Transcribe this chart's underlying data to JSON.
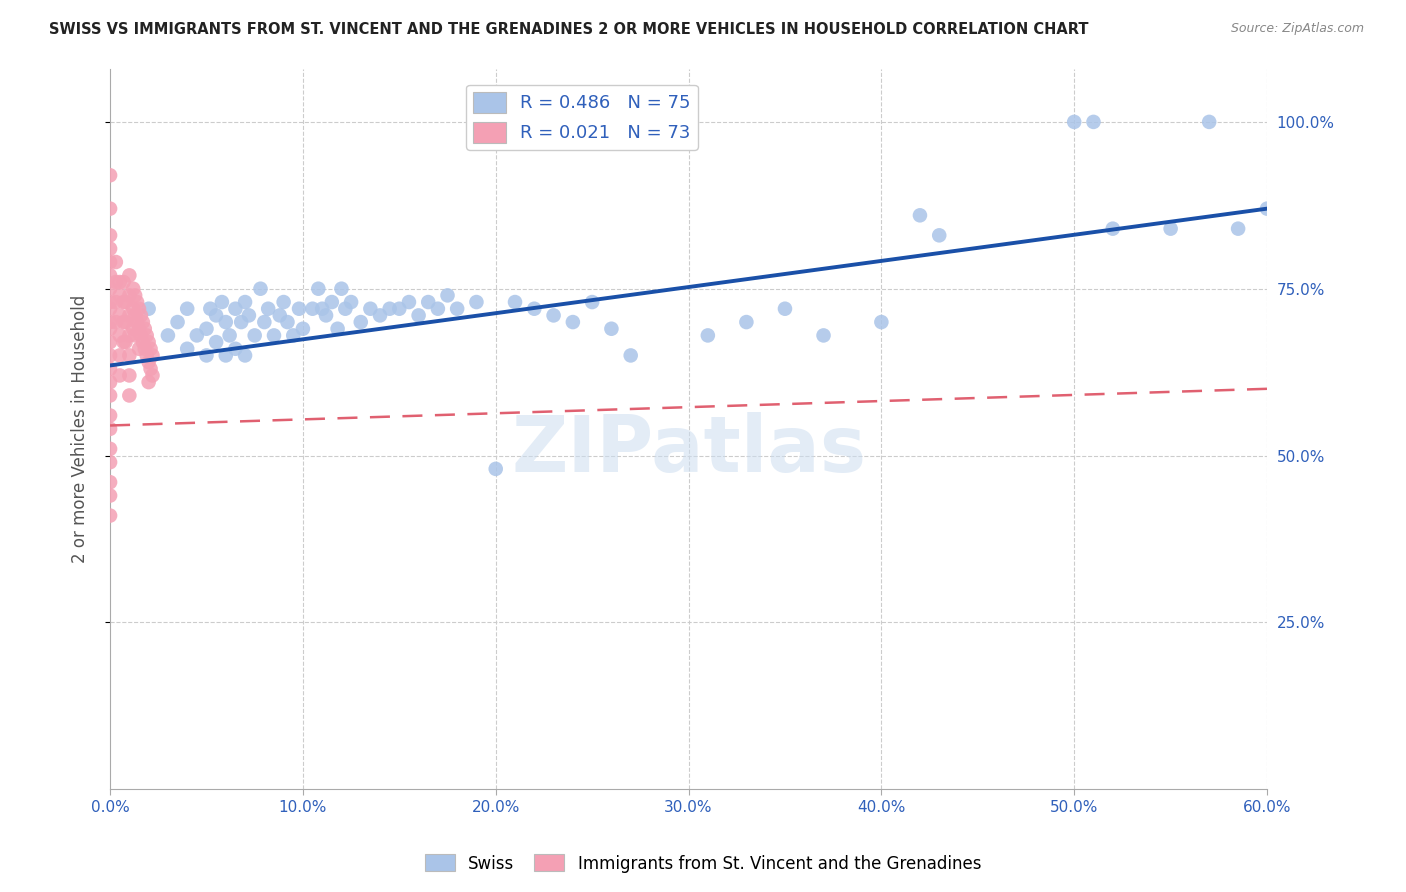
{
  "title": "SWISS VS IMMIGRANTS FROM ST. VINCENT AND THE GRENADINES 2 OR MORE VEHICLES IN HOUSEHOLD CORRELATION CHART",
  "source": "Source: ZipAtlas.com",
  "ylabel": "2 or more Vehicles in Household",
  "xlim": [
    0.0,
    0.6
  ],
  "ylim": [
    0.0,
    1.05
  ],
  "xtick_labels": [
    "0.0%",
    "10.0%",
    "20.0%",
    "30.0%",
    "40.0%",
    "50.0%",
    "60.0%"
  ],
  "xtick_values": [
    0.0,
    0.1,
    0.2,
    0.3,
    0.4,
    0.5,
    0.6
  ],
  "ytick_labels": [
    "25.0%",
    "50.0%",
    "75.0%",
    "100.0%"
  ],
  "ytick_values": [
    0.25,
    0.5,
    0.75,
    1.0
  ],
  "swiss_R": 0.486,
  "swiss_N": 75,
  "svg_R": 0.021,
  "svg_N": 73,
  "swiss_color": "#aac4e8",
  "svg_color": "#f4a0b4",
  "swiss_line_color": "#1a50a8",
  "svg_line_color": "#e06070",
  "watermark": "ZIPatlas",
  "legend_swiss_label": "Swiss",
  "legend_svg_label": "Immigrants from St. Vincent and the Grenadines",
  "swiss_x": [
    0.02,
    0.03,
    0.035,
    0.04,
    0.04,
    0.045,
    0.05,
    0.05,
    0.052,
    0.055,
    0.055,
    0.058,
    0.06,
    0.06,
    0.062,
    0.065,
    0.065,
    0.068,
    0.07,
    0.07,
    0.072,
    0.075,
    0.078,
    0.08,
    0.082,
    0.085,
    0.088,
    0.09,
    0.092,
    0.095,
    0.098,
    0.1,
    0.105,
    0.108,
    0.11,
    0.112,
    0.115,
    0.118,
    0.12,
    0.122,
    0.125,
    0.13,
    0.135,
    0.14,
    0.145,
    0.15,
    0.155,
    0.16,
    0.165,
    0.17,
    0.175,
    0.18,
    0.19,
    0.2,
    0.21,
    0.22,
    0.23,
    0.24,
    0.25,
    0.26,
    0.27,
    0.31,
    0.33,
    0.35,
    0.37,
    0.4,
    0.42,
    0.43,
    0.5,
    0.51,
    0.52,
    0.55,
    0.57,
    0.585,
    0.6
  ],
  "swiss_y": [
    0.72,
    0.68,
    0.7,
    0.66,
    0.72,
    0.68,
    0.65,
    0.69,
    0.72,
    0.67,
    0.71,
    0.73,
    0.65,
    0.7,
    0.68,
    0.72,
    0.66,
    0.7,
    0.65,
    0.73,
    0.71,
    0.68,
    0.75,
    0.7,
    0.72,
    0.68,
    0.71,
    0.73,
    0.7,
    0.68,
    0.72,
    0.69,
    0.72,
    0.75,
    0.72,
    0.71,
    0.73,
    0.69,
    0.75,
    0.72,
    0.73,
    0.7,
    0.72,
    0.71,
    0.72,
    0.72,
    0.73,
    0.71,
    0.73,
    0.72,
    0.74,
    0.72,
    0.73,
    0.48,
    0.73,
    0.72,
    0.71,
    0.7,
    0.73,
    0.69,
    0.65,
    0.68,
    0.7,
    0.72,
    0.68,
    0.7,
    0.86,
    0.83,
    1.0,
    1.0,
    0.84,
    0.84,
    1.0,
    0.84,
    0.87
  ],
  "svg_x": [
    0.0,
    0.0,
    0.0,
    0.0,
    0.0,
    0.0,
    0.0,
    0.0,
    0.0,
    0.0,
    0.0,
    0.0,
    0.0,
    0.0,
    0.0,
    0.0,
    0.0,
    0.0,
    0.0,
    0.0,
    0.0,
    0.0,
    0.0,
    0.003,
    0.003,
    0.003,
    0.003,
    0.005,
    0.005,
    0.005,
    0.005,
    0.005,
    0.005,
    0.007,
    0.007,
    0.007,
    0.007,
    0.008,
    0.008,
    0.008,
    0.01,
    0.01,
    0.01,
    0.01,
    0.01,
    0.01,
    0.01,
    0.012,
    0.012,
    0.012,
    0.013,
    0.013,
    0.013,
    0.014,
    0.014,
    0.015,
    0.015,
    0.015,
    0.016,
    0.016,
    0.017,
    0.017,
    0.018,
    0.018,
    0.019,
    0.019,
    0.02,
    0.02,
    0.02,
    0.021,
    0.021,
    0.022,
    0.022
  ],
  "svg_y": [
    0.92,
    0.87,
    0.83,
    0.81,
    0.79,
    0.77,
    0.75,
    0.73,
    0.72,
    0.7,
    0.69,
    0.67,
    0.65,
    0.63,
    0.61,
    0.59,
    0.56,
    0.54,
    0.51,
    0.49,
    0.46,
    0.44,
    0.41,
    0.79,
    0.76,
    0.73,
    0.7,
    0.76,
    0.74,
    0.71,
    0.68,
    0.65,
    0.62,
    0.76,
    0.73,
    0.7,
    0.67,
    0.73,
    0.7,
    0.67,
    0.77,
    0.74,
    0.71,
    0.68,
    0.65,
    0.62,
    0.59,
    0.75,
    0.72,
    0.69,
    0.74,
    0.71,
    0.68,
    0.73,
    0.7,
    0.72,
    0.69,
    0.66,
    0.71,
    0.68,
    0.7,
    0.67,
    0.69,
    0.66,
    0.68,
    0.65,
    0.67,
    0.64,
    0.61,
    0.66,
    0.63,
    0.65,
    0.62
  ]
}
